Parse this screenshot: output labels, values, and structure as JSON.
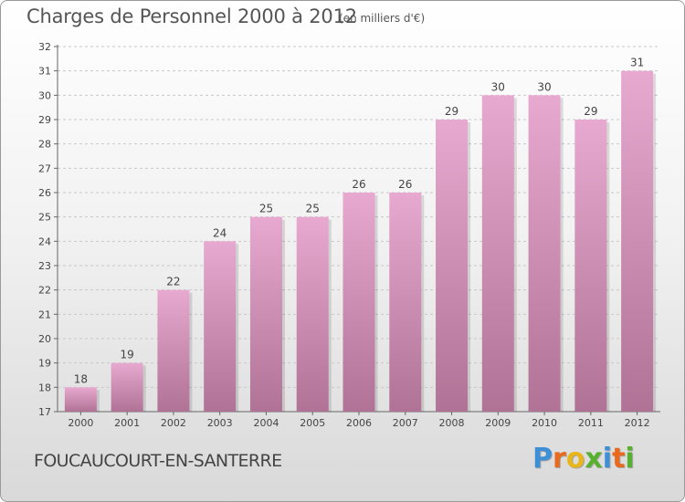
{
  "header": {
    "title": "Charges de Personnel 2000 à 2012",
    "subtitle": "(en milliers d'€)"
  },
  "footer": {
    "city": "FOUCAUCOURT-EN-SANTERRE",
    "logo_letters": [
      "P",
      "r",
      "o",
      "x",
      "i",
      "t",
      "i"
    ],
    "logo_colors": [
      "#3e8fd6",
      "#e96a1c",
      "#e8b61a",
      "#58b12e",
      "#3e8fd6",
      "#e96a1c",
      "#58b12e"
    ]
  },
  "chart_data": {
    "type": "bar",
    "title": "Charges de Personnel 2000 à 2012",
    "subtitle": "(en milliers d'€)",
    "categories": [
      "2000",
      "2001",
      "2002",
      "2003",
      "2004",
      "2005",
      "2006",
      "2007",
      "2008",
      "2009",
      "2010",
      "2011",
      "2012"
    ],
    "values": [
      18,
      19,
      22,
      24,
      25,
      25,
      26,
      26,
      29,
      30,
      30,
      29,
      31
    ],
    "ylim": [
      17,
      32
    ],
    "yticks": [
      17,
      18,
      19,
      20,
      21,
      22,
      23,
      24,
      25,
      26,
      27,
      28,
      29,
      30,
      31,
      32
    ],
    "grid": "horizontal dashed",
    "bar_color_top": "#e8a9d0",
    "bar_color_bottom": "#b07295"
  }
}
